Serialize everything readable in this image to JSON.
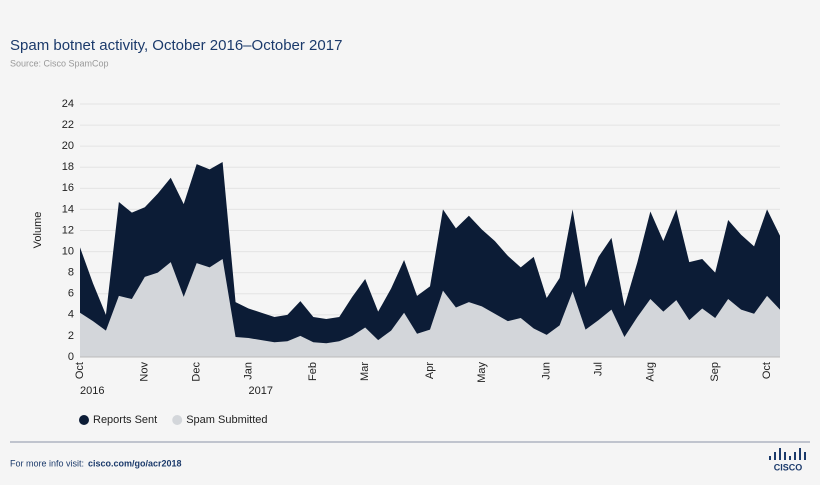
{
  "chart_data": {
    "type": "area",
    "title": "Spam botnet activity, October 2016–October 2017",
    "subtitle": "Source: Cisco SpamCop",
    "y_label": "Volume",
    "categories": [
      "Oct",
      null,
      null,
      null,
      null,
      "Nov",
      null,
      null,
      null,
      "Dec",
      null,
      null,
      null,
      "Jan",
      null,
      null,
      null,
      null,
      "Feb",
      null,
      null,
      null,
      "Mar",
      null,
      null,
      null,
      null,
      "Apr",
      null,
      null,
      null,
      "May",
      null,
      null,
      null,
      null,
      "Jun",
      null,
      null,
      null,
      "Jul",
      null,
      null,
      null,
      "Aug",
      null,
      null,
      null,
      null,
      "Sep",
      null,
      null,
      null,
      "Oct",
      null
    ],
    "year_labels": [
      "2016",
      "2017"
    ],
    "series": [
      {
        "name": "Reports Sent",
        "color": "#0c1c36",
        "values": [
          10.4,
          7,
          4,
          14.7,
          13.7,
          14.2,
          15.5,
          17,
          14.5,
          18.3,
          17.8,
          18.5,
          5.2,
          4.6,
          4.2,
          3.8,
          4,
          5.3,
          3.8,
          3.6,
          3.8,
          5.7,
          7.4,
          4.3,
          6.5,
          9.2,
          5.8,
          6.7,
          14,
          12.2,
          13.4,
          12.1,
          11,
          9.6,
          8.5,
          9.5,
          5.6,
          7.5,
          14,
          6.6,
          9.5,
          11.3,
          4.8,
          9,
          13.8,
          11,
          14,
          9,
          9.3,
          8,
          13,
          11.6,
          10.5,
          14,
          11.5
        ]
      },
      {
        "name": "Spam Submitted",
        "color": "#d3d6da",
        "values": [
          4.2,
          3.4,
          2.5,
          5.8,
          5.5,
          7.6,
          8,
          9,
          5.7,
          8.9,
          8.5,
          9.3,
          1.9,
          1.8,
          1.6,
          1.4,
          1.5,
          2,
          1.4,
          1.3,
          1.5,
          2,
          2.8,
          1.6,
          2.5,
          4.2,
          2.2,
          2.6,
          6.3,
          4.7,
          5.2,
          4.8,
          4.1,
          3.4,
          3.7,
          2.7,
          2.1,
          3,
          6.2,
          2.6,
          3.5,
          4.5,
          1.9,
          3.8,
          5.5,
          4.3,
          5.4,
          3.5,
          4.6,
          3.7,
          5.5,
          4.5,
          4.1,
          5.8,
          4.5
        ]
      }
    ],
    "ylim": [
      0,
      24
    ],
    "yticks": [
      0,
      2,
      4,
      6,
      8,
      10,
      12,
      14,
      16,
      18,
      20,
      22,
      24
    ],
    "grid": true,
    "legend": "bottom-left",
    "footer_text": "For more info visit:",
    "footer_link": "cisco.com/go/acr2018",
    "logo_text": "CISCO"
  }
}
